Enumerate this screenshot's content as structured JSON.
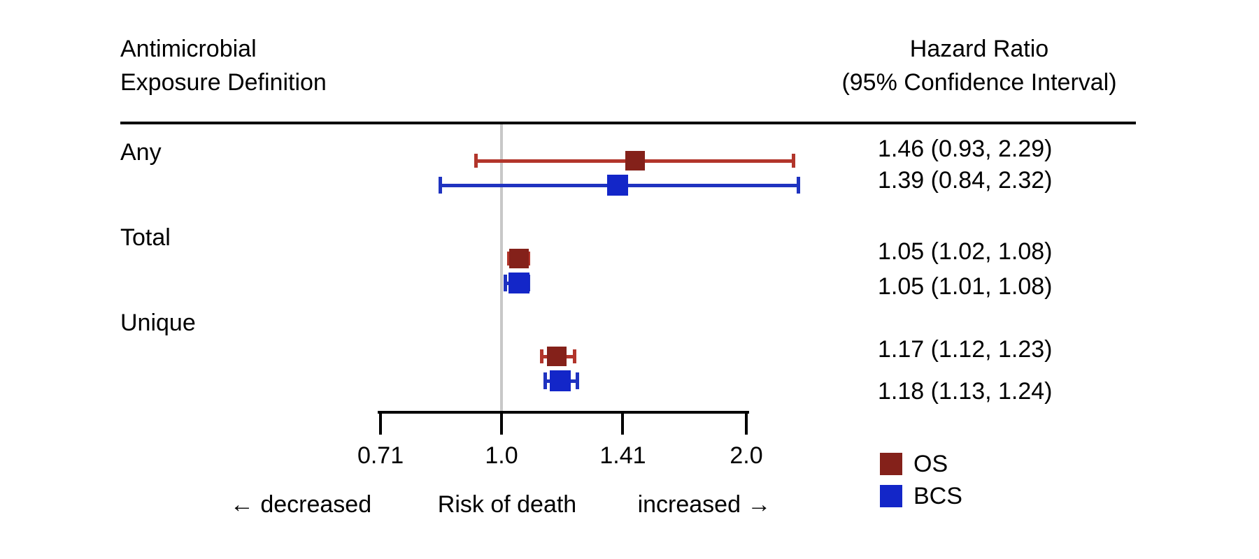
{
  "header": {
    "left_line1": "Antimicrobial",
    "left_line2": "Exposure Definition",
    "right_line1": "Hazard Ratio",
    "right_line2": "(95% Confidence Interval)"
  },
  "chart_data": {
    "type": "forest",
    "x_scale": "log2",
    "x_range": [
      0.71,
      2.0
    ],
    "x_ticks": [
      0.71,
      1.0,
      1.41,
      2.0
    ],
    "x_tick_labels": [
      "0.71",
      "1.0",
      "1.41",
      "2.0"
    ],
    "reference_value": 1.0,
    "axis_caption": {
      "left": "← decreased",
      "center": "Risk of death",
      "right": "increased →"
    },
    "series": [
      {
        "name": "OS",
        "marker_color": "#84211a",
        "line_color": "#b2352b"
      },
      {
        "name": "BCS",
        "marker_color": "#1326c8",
        "line_color": "#1f33c0"
      }
    ],
    "rows": [
      {
        "label": "Any",
        "estimates": [
          {
            "series": "OS",
            "hr": 1.46,
            "ci_low": 0.93,
            "ci_high": 2.29,
            "text": "1.46 (0.93, 2.29)"
          },
          {
            "series": "BCS",
            "hr": 1.39,
            "ci_low": 0.84,
            "ci_high": 2.32,
            "text": "1.39 (0.84, 2.32)"
          }
        ]
      },
      {
        "label": "Total",
        "estimates": [
          {
            "series": "OS",
            "hr": 1.05,
            "ci_low": 1.02,
            "ci_high": 1.08,
            "text": "1.05 (1.02, 1.08)"
          },
          {
            "series": "BCS",
            "hr": 1.05,
            "ci_low": 1.01,
            "ci_high": 1.08,
            "text": "1.05 (1.01, 1.08)"
          }
        ]
      },
      {
        "label": "Unique",
        "estimates": [
          {
            "series": "OS",
            "hr": 1.17,
            "ci_low": 1.12,
            "ci_high": 1.23,
            "text": "1.17 (1.12, 1.23)"
          },
          {
            "series": "BCS",
            "hr": 1.18,
            "ci_low": 1.13,
            "ci_high": 1.24,
            "text": "1.18 (1.13, 1.24)"
          }
        ]
      }
    ]
  },
  "legend": {
    "items": [
      {
        "label": "OS",
        "color": "#84211a"
      },
      {
        "label": "BCS",
        "color": "#1326c8"
      }
    ]
  },
  "colors": {
    "reference_line": "#c8c8c8",
    "axis": "#000000",
    "text": "#000000"
  }
}
